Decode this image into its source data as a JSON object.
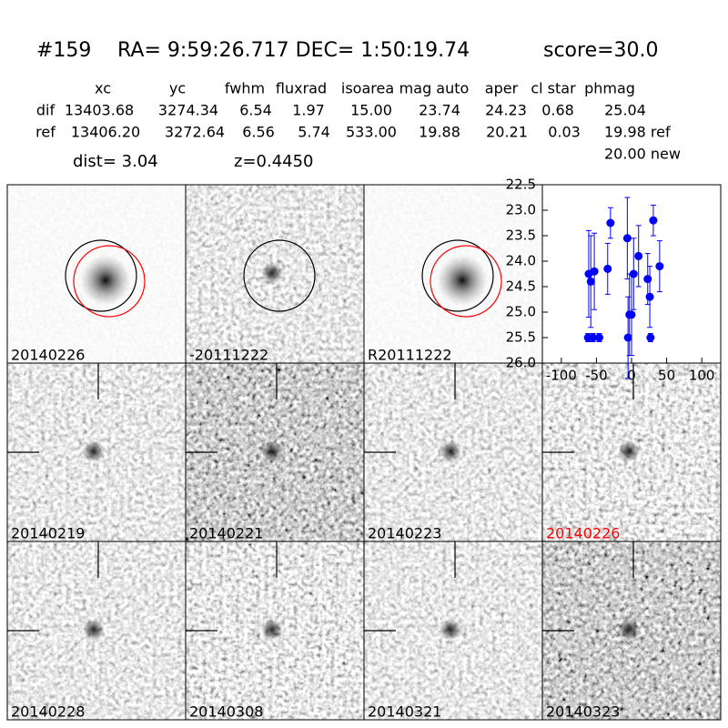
{
  "header": {
    "id": "#159",
    "coords": "RA= 9:59:26.717 DEC= 1:50:19.74",
    "score": "score=30.0"
  },
  "table": {
    "columns": [
      "xc",
      "yc",
      "fwhm",
      "fluxrad",
      "isoarea",
      "mag auto",
      "aper",
      "cl star",
      "phmag"
    ],
    "rows": [
      [
        "dif",
        "13403.68",
        "3274.34",
        "6.54",
        "1.97",
        "15.00",
        "23.74",
        "24.23",
        "0.68",
        "25.04"
      ],
      [
        "ref",
        "13406.20",
        "3272.64",
        "6.56",
        "5.74",
        "533.00",
        "19.88",
        "20.21",
        "0.03",
        "19.98 ref"
      ]
    ],
    "extra": "20.00 new"
  },
  "dist": "dist=  3.04",
  "z": "z=0.4450",
  "panels": [
    {
      "label": "20140226"
    },
    {
      "label": "-20111222"
    },
    {
      "label": "R20111222"
    },
    {
      "label": "20140219"
    },
    {
      "label": "20140221"
    },
    {
      "label": "20140223"
    },
    {
      "label": "20140226",
      "color": "#ff0000"
    },
    {
      "label": "20140228"
    },
    {
      "label": "20140308"
    },
    {
      "label": "20140321"
    },
    {
      "label": "20140323"
    }
  ],
  "chart_data": {
    "type": "scatter",
    "color": "#0000ff",
    "x": [
      -62,
      -55,
      -46,
      -61,
      -58,
      -53,
      -34,
      -30,
      -6,
      -5,
      -3,
      0,
      3,
      10,
      23,
      26,
      27,
      31,
      40
    ],
    "values": [
      25.5,
      25.5,
      25.5,
      24.25,
      24.4,
      24.2,
      24.15,
      23.25,
      23.55,
      25.5,
      25.05,
      25.05,
      24.25,
      23.9,
      24.35,
      24.7,
      25.5,
      23.2,
      24.1
    ],
    "errors": [
      0.08,
      0.08,
      0.08,
      0.85,
      0.9,
      0.75,
      0.5,
      0.3,
      0.8,
      0.8,
      0.8,
      0.8,
      0.7,
      0.6,
      0.5,
      0.6,
      0.08,
      0.3,
      0.5
    ],
    "xlim": [
      -127,
      127
    ],
    "ylim": [
      26.0,
      22.5
    ],
    "xticks": [
      -100,
      -50,
      0,
      50,
      100
    ],
    "yticks": [
      {
        "value": 22.5,
        "label": "22.5"
      },
      {
        "value": 23,
        "label": "23.0"
      },
      {
        "value": 23.5,
        "label": "23.5"
      },
      {
        "value": 24,
        "label": "24.0"
      },
      {
        "value": 24.5,
        "label": "24.5"
      },
      {
        "value": 25,
        "label": "25.0"
      },
      {
        "value": 25.5,
        "label": "25.5"
      },
      {
        "value": 26,
        "label": "26.0"
      }
    ]
  }
}
